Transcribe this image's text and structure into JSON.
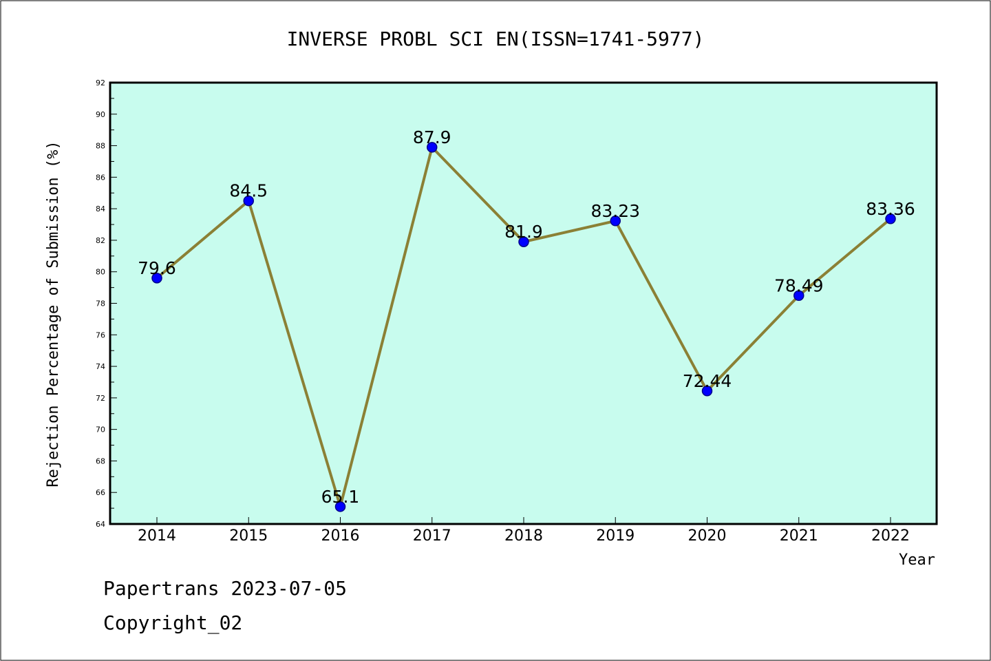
{
  "chart_data": {
    "type": "line",
    "title": "INVERSE PROBL SCI EN(ISSN=1741-5977)",
    "xlabel": "Year",
    "ylabel": "Rejection Percentage of Submission (%)",
    "categories": [
      "2014",
      "2015",
      "2016",
      "2017",
      "2018",
      "2019",
      "2020",
      "2021",
      "2022"
    ],
    "values": [
      79.6,
      84.5,
      65.1,
      87.9,
      81.9,
      83.23,
      72.44,
      78.49,
      83.36
    ],
    "data_labels": [
      "79.6",
      "84.5",
      "65.1",
      "87.9",
      "81.9",
      "83.23",
      "72.44",
      "78.49",
      "83.36"
    ],
    "ylim": [
      64,
      92
    ],
    "yticks": [
      "64",
      "66",
      "68",
      "70",
      "72",
      "74",
      "76",
      "78",
      "80",
      "82",
      "84",
      "86",
      "88",
      "90",
      "92"
    ],
    "grid": false,
    "colors": {
      "plot_background": "#c8fcee",
      "line": "#8b8035",
      "marker": "#0000ff",
      "marker_edge": "#00008b"
    }
  },
  "footer": {
    "line1": "Papertrans 2023-07-05",
    "line2": "Copyright_02"
  }
}
